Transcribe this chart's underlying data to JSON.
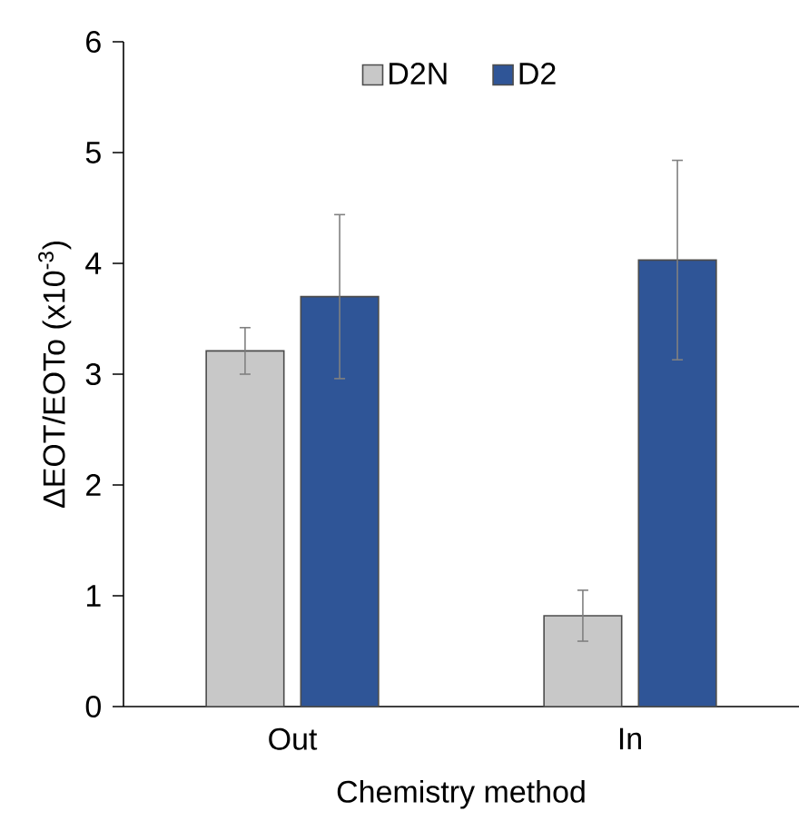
{
  "chart_data": {
    "type": "bar",
    "xlabel": "Chemistry method",
    "ylabel": "ΔEOT/EOTo (x10$^{-3}$)",
    "categories": [
      "Out",
      "In"
    ],
    "series": [
      {
        "name": "D2N",
        "color": "#c8c8c8",
        "values": [
          3.21,
          0.82
        ],
        "errors": [
          0.21,
          0.23
        ]
      },
      {
        "name": "D2",
        "color": "#2f5597",
        "values": [
          3.7,
          4.03
        ],
        "errors": [
          0.74,
          0.9
        ]
      }
    ],
    "ylim": [
      0,
      6
    ],
    "yticks": [
      0,
      1,
      2,
      3,
      4,
      5,
      6
    ],
    "legend": "top",
    "grid": false
  }
}
